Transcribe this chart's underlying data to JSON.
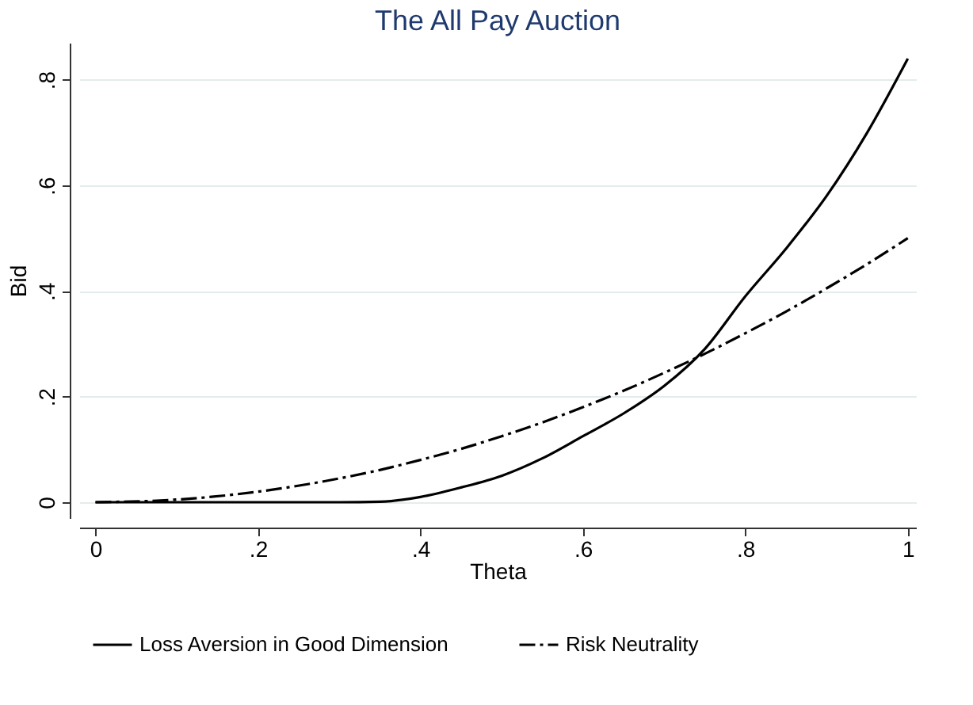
{
  "chart_data": {
    "type": "line",
    "title": "The All Pay Auction",
    "xlabel": "Theta",
    "ylabel": "Bid",
    "x": [
      0,
      0.1,
      0.2,
      0.3,
      0.35,
      0.4,
      0.45,
      0.5,
      0.55,
      0.6,
      0.65,
      0.7,
      0.75,
      0.8,
      0.85,
      0.9,
      0.95,
      1
    ],
    "series": [
      {
        "name": "Loss Aversion in Good Dimension",
        "color": "#000000",
        "line_style": "solid",
        "values": [
          0,
          0,
          0,
          0,
          0.001,
          0.01,
          0.028,
          0.05,
          0.083,
          0.125,
          0.168,
          0.22,
          0.29,
          0.39,
          0.48,
          0.58,
          0.7,
          0.84
        ]
      },
      {
        "name": "Risk Neutrality",
        "color": "#000000",
        "line_style": "dashed",
        "values": [
          0,
          0.005,
          0.02,
          0.045,
          0.061,
          0.08,
          0.101,
          0.125,
          0.151,
          0.18,
          0.211,
          0.245,
          0.281,
          0.32,
          0.361,
          0.405,
          0.451,
          0.5
        ]
      }
    ],
    "xlim": [
      -0.02,
      1.01
    ],
    "ylim": [
      -0.03,
      0.87
    ],
    "xticks": [
      {
        "value": 0,
        "label": "0"
      },
      {
        "value": 0.2,
        "label": ".2"
      },
      {
        "value": 0.4,
        "label": ".4"
      },
      {
        "value": 0.6,
        "label": ".6"
      },
      {
        "value": 0.8,
        "label": ".8"
      },
      {
        "value": 1,
        "label": "1"
      }
    ],
    "yticks": [
      {
        "value": 0,
        "label": "0"
      },
      {
        "value": 0.2,
        "label": ".2"
      },
      {
        "value": 0.4,
        "label": ".4"
      },
      {
        "value": 0.6,
        "label": ".6"
      },
      {
        "value": 0.8,
        "label": ".8"
      }
    ],
    "grid": "y",
    "legend": "bottom",
    "marker": "none"
  }
}
